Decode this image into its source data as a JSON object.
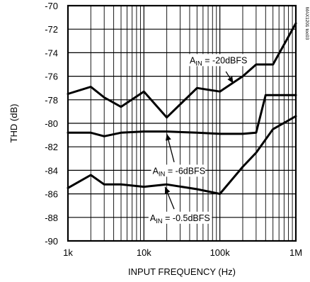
{
  "chart_data": {
    "type": "line",
    "title": "",
    "xlabel": "INPUT FREQUENCY (Hz)",
    "ylabel": "THD (dB)",
    "x_scale": "log",
    "xlim": [
      1000,
      1000000
    ],
    "ylim": [
      -90,
      -70
    ],
    "x_ticks": [
      1000,
      10000,
      100000,
      1000000
    ],
    "x_tick_labels": [
      "1k",
      "10k",
      "100k",
      "1M"
    ],
    "y_ticks": [
      -70,
      -72,
      -74,
      -76,
      -78,
      -80,
      -82,
      -84,
      -86,
      -88,
      -90
    ],
    "y_tick_labels": [
      "-70",
      "-72",
      "-74",
      "-76",
      "-78",
      "-80",
      "-82",
      "-84",
      "-86",
      "-88",
      "-90"
    ],
    "grid": true,
    "watermark": "MAX1201 toc03",
    "series": [
      {
        "name": "AIN = -20dBFS",
        "label_main": "A",
        "label_sub": "IN",
        "label_rest": " = -20dBFS",
        "x": [
          1000,
          2000,
          3000,
          5000,
          10000,
          20000,
          50000,
          100000,
          200000,
          300000,
          400000,
          500000,
          1000000
        ],
        "y": [
          -77.5,
          -76.9,
          -77.8,
          -78.6,
          -77.3,
          -79.5,
          -77.0,
          -77.3,
          -76.0,
          -75.0,
          -75.0,
          -75.0,
          -71.5
        ]
      },
      {
        "name": "AIN = -6dBFS",
        "label_main": "A",
        "label_sub": "IN",
        "label_rest": " = -6dBFS",
        "x": [
          1000,
          2000,
          3000,
          5000,
          10000,
          20000,
          50000,
          100000,
          200000,
          300000,
          400000,
          500000,
          1000000
        ],
        "y": [
          -80.8,
          -80.8,
          -81.1,
          -80.8,
          -80.7,
          -80.7,
          -80.8,
          -80.9,
          -80.9,
          -80.8,
          -77.6,
          -77.6,
          -77.6
        ]
      },
      {
        "name": "AIN = -0.5dBFS",
        "label_main": "A",
        "label_sub": "IN",
        "label_rest": " = -0.5dBFS",
        "x": [
          1000,
          2000,
          3000,
          5000,
          10000,
          20000,
          50000,
          100000,
          200000,
          300000,
          500000,
          1000000
        ],
        "y": [
          -85.5,
          -84.4,
          -85.2,
          -85.2,
          -85.4,
          -85.2,
          -85.6,
          -86.0,
          -83.7,
          -82.5,
          -80.5,
          -79.4
        ]
      }
    ],
    "annotations": [
      {
        "series": 0,
        "text_at": [
          40000,
          -74.9
        ],
        "arrow_from": [
          120000,
          -75.6
        ],
        "arrow_to": [
          150000,
          -76.6
        ]
      },
      {
        "series": 1,
        "text_at": [
          13000,
          -84.3
        ],
        "arrow_from": [
          25000,
          -83.3
        ],
        "arrow_to": [
          20000,
          -80.9
        ]
      },
      {
        "series": 2,
        "text_at": [
          12000,
          -88.3
        ],
        "arrow_from": [
          25000,
          -87.3
        ],
        "arrow_to": [
          19000,
          -85.4
        ]
      }
    ]
  }
}
